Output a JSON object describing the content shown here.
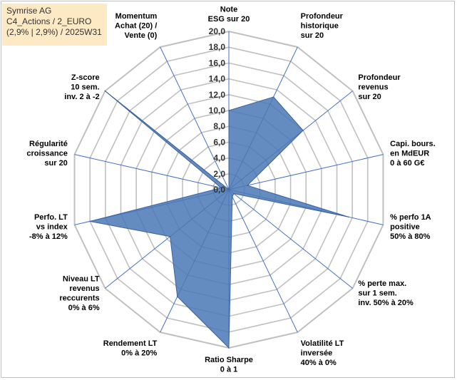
{
  "header": {
    "line1": "Symrise AG",
    "line2": "C4_Actions / 2_EURO",
    "line3": "(2,9% | 2,9%) / 2025W31"
  },
  "colors": {
    "fill": "#4a78b5",
    "stroke": "#3b62a0",
    "grid": "#c0c0c0",
    "spoke": "#4472c4",
    "title_bg": "#fde9c4"
  },
  "chart_data": {
    "type": "radar",
    "r_min": 0,
    "r_max": 20,
    "r_step": 2,
    "grid": true,
    "tick_labels": [
      "0,0",
      "2,0",
      "4,0",
      "6,0",
      "8,0",
      "10,0",
      "12,0",
      "14,0",
      "16,0",
      "18,0",
      "20,0"
    ],
    "categories": [
      [
        "Note",
        "ESG sur 20"
      ],
      [
        "Profondeur",
        "historique",
        "sur 20"
      ],
      [
        "Profondeur",
        "revenus",
        "sur 20"
      ],
      [
        "Capi. bours.",
        "en MdEUR",
        "0 à 60 G€"
      ],
      [
        "% perfo 1A",
        "positive",
        "50% à 80%"
      ],
      [
        "% perte max.",
        "sur 1 sem.",
        "inv. 50% à 20%"
      ],
      [
        "Volatilité LT",
        "inversée",
        "40% à 0%"
      ],
      [
        "Ratio Sharpe",
        "0 à 1"
      ],
      [
        "Rendement LT",
        "0% à 20%"
      ],
      [
        "Niveau LT",
        "revenus",
        "reccurents",
        "0% à 6%"
      ],
      [
        "Perfo. LT",
        "vs index",
        "-8% à 12%"
      ],
      [
        "Régularité",
        "croissance",
        "sur 20"
      ],
      [
        "Z-score",
        "10 sem.",
        "inv. 2 à -2"
      ],
      [
        "Momentum",
        "Achat (20) /",
        "Vente (0)"
      ]
    ],
    "series": [
      {
        "values": [
          10.0,
          13.0,
          12.0,
          2.4,
          15.5,
          0.8,
          1.0,
          20.0,
          15.0,
          9.5,
          18.0,
          1.0,
          20.0,
          0.0
        ]
      }
    ]
  }
}
